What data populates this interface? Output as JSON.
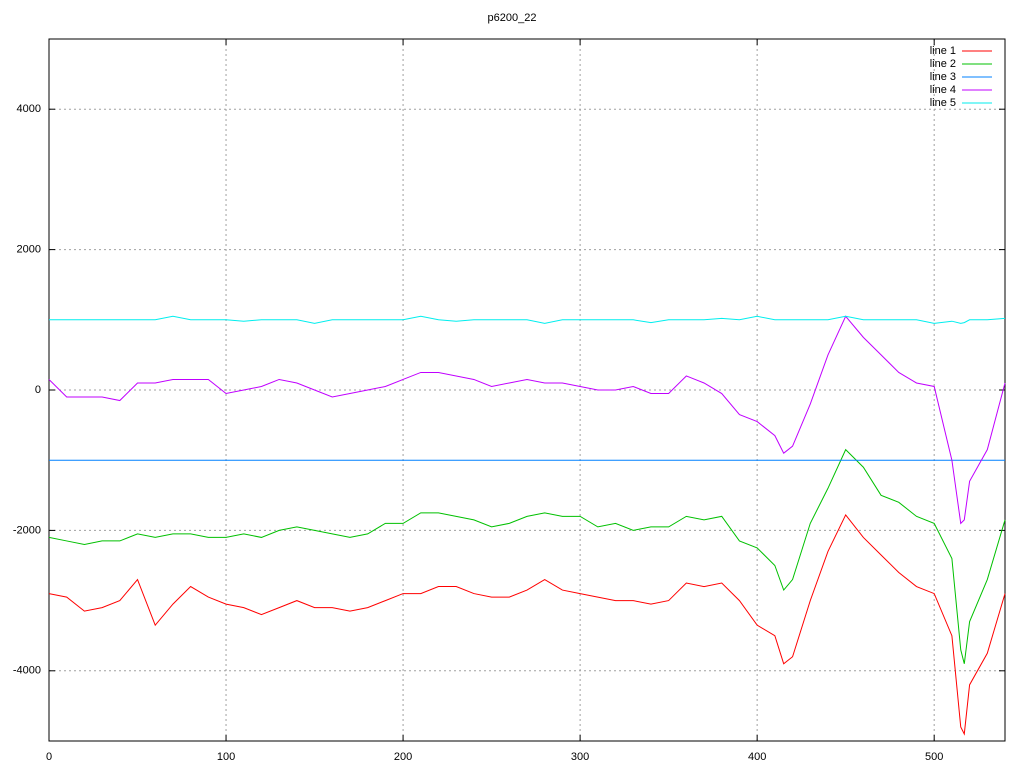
{
  "chart_data": {
    "type": "line",
    "title": "p6200_22",
    "x": [
      0,
      10,
      20,
      30,
      40,
      50,
      60,
      70,
      80,
      90,
      100,
      110,
      120,
      130,
      140,
      150,
      160,
      170,
      180,
      190,
      200,
      210,
      220,
      230,
      240,
      250,
      260,
      270,
      280,
      290,
      300,
      310,
      320,
      330,
      340,
      350,
      360,
      370,
      380,
      390,
      400,
      410,
      415,
      420,
      430,
      440,
      450,
      460,
      470,
      480,
      490,
      500,
      510,
      515,
      517,
      520,
      530,
      540
    ],
    "series": [
      {
        "name": "line 1",
        "color": "#ff0000",
        "values": [
          -2900,
          -2950,
          -3150,
          -3100,
          -3000,
          -2700,
          -3350,
          -3050,
          -2800,
          -2950,
          -3050,
          -3100,
          -3200,
          -3100,
          -3000,
          -3100,
          -3100,
          -3150,
          -3100,
          -3000,
          -2900,
          -2900,
          -2800,
          -2800,
          -2900,
          -2950,
          -2950,
          -2850,
          -2700,
          -2850,
          -2900,
          -2950,
          -3000,
          -3000,
          -3050,
          -3000,
          -2750,
          -2800,
          -2750,
          -3000,
          -3350,
          -3500,
          -3900,
          -3800,
          -3000,
          -2300,
          -1780,
          -2100,
          -2350,
          -2600,
          -2800,
          -2900,
          -3500,
          -4800,
          -4900,
          -4200,
          -3750,
          -2900
        ]
      },
      {
        "name": "line 2",
        "color": "#00c000",
        "values": [
          -2100,
          -2150,
          -2200,
          -2150,
          -2150,
          -2050,
          -2100,
          -2050,
          -2050,
          -2100,
          -2100,
          -2050,
          -2100,
          -2000,
          -1950,
          -2000,
          -2050,
          -2100,
          -2050,
          -1900,
          -1900,
          -1750,
          -1750,
          -1800,
          -1850,
          -1950,
          -1900,
          -1800,
          -1750,
          -1800,
          -1800,
          -1950,
          -1900,
          -2000,
          -1950,
          -1950,
          -1800,
          -1850,
          -1800,
          -2150,
          -2250,
          -2500,
          -2850,
          -2700,
          -1900,
          -1400,
          -850,
          -1100,
          -1500,
          -1600,
          -1800,
          -1900,
          -2400,
          -3700,
          -3900,
          -3300,
          -2700,
          -1850
        ]
      },
      {
        "name": "line 3",
        "color": "#0080ff",
        "values": [
          -1000,
          -1000,
          -1000,
          -1000,
          -1000,
          -1000,
          -1000,
          -1000,
          -1000,
          -1000,
          -1000,
          -1000,
          -1000,
          -1000,
          -1000,
          -1000,
          -1000,
          -1000,
          -1000,
          -1000,
          -1000,
          -1000,
          -1000,
          -1000,
          -1000,
          -1000,
          -1000,
          -1000,
          -1000,
          -1000,
          -1000,
          -1000,
          -1000,
          -1000,
          -1000,
          -1000,
          -1000,
          -1000,
          -1000,
          -1000,
          -1000,
          -1000,
          -1000,
          -1000,
          -1000,
          -1000,
          -1000,
          -1000,
          -1000,
          -1000,
          -1000,
          -1000,
          -1000,
          -1000,
          -1000,
          -1000,
          -1000,
          -1000
        ]
      },
      {
        "name": "line 4",
        "color": "#c000ff",
        "values": [
          150,
          -100,
          -100,
          -100,
          -150,
          100,
          100,
          150,
          150,
          150,
          -50,
          0,
          50,
          150,
          100,
          0,
          -100,
          -50,
          0,
          50,
          150,
          250,
          250,
          200,
          150,
          50,
          100,
          150,
          100,
          100,
          50,
          0,
          0,
          50,
          -50,
          -50,
          200,
          100,
          -50,
          -350,
          -450,
          -650,
          -900,
          -800,
          -200,
          500,
          1050,
          750,
          500,
          250,
          100,
          50,
          -1000,
          -1900,
          -1850,
          -1300,
          -850,
          100
        ]
      },
      {
        "name": "line 5",
        "color": "#00eeee",
        "values": [
          1000,
          1000,
          1000,
          1000,
          1000,
          1000,
          1000,
          1050,
          1000,
          1000,
          1000,
          980,
          1000,
          1000,
          1000,
          950,
          1000,
          1000,
          1000,
          1000,
          1000,
          1050,
          1000,
          980,
          1000,
          1000,
          1000,
          1000,
          950,
          1000,
          1000,
          1000,
          1000,
          1000,
          960,
          1000,
          1000,
          1000,
          1020,
          1000,
          1050,
          1000,
          1000,
          1000,
          1000,
          1000,
          1050,
          1000,
          1000,
          1000,
          1000,
          950,
          980,
          950,
          960,
          1000,
          1000,
          1020
        ]
      }
    ],
    "xlim": [
      0,
      540
    ],
    "xticks": [
      0,
      100,
      200,
      300,
      400,
      500
    ],
    "ylim": [
      -5000,
      5000
    ],
    "yticks": [
      -4000,
      -2000,
      0,
      2000,
      4000
    ],
    "grid": true,
    "legend": "top-right"
  }
}
